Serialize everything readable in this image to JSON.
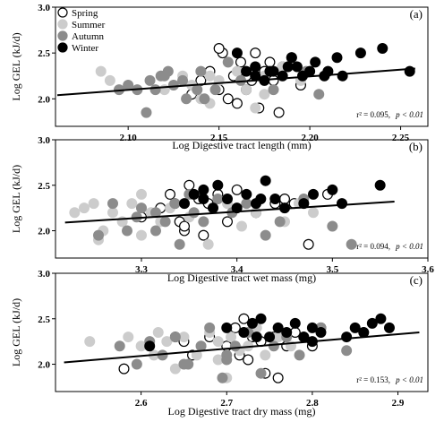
{
  "chart_data": [
    {
      "type": "scatter",
      "panel_label": "(a)",
      "xlabel": "Log Digestive tract length (mm)",
      "ylabel": "Log GEL (kJ/d)",
      "xlim": [
        2.06,
        2.265
      ],
      "ylim": [
        1.7,
        3.0
      ],
      "xticks": [
        "2.10",
        "2.15",
        "2.20",
        "2.25"
      ],
      "yticks": [
        "2.0",
        "2.5",
        "3.0"
      ],
      "stat_r2": "r² = 0.095,",
      "stat_p": "p < 0.01",
      "legend": {
        "placement": "top-left",
        "entries": [
          "Spring",
          "Summer",
          "Autumn",
          "Winter"
        ]
      },
      "trendline": {
        "x": [
          2.061,
          2.258
        ],
        "y": [
          2.04,
          2.33
        ]
      },
      "series": [
        {
          "name": "Spring",
          "x": [
            2.135,
            2.14,
            2.145,
            2.15,
            2.152,
            2.155,
            2.158,
            2.16,
            2.162,
            2.165,
            2.168,
            2.17,
            2.172,
            2.175,
            2.178,
            2.18,
            2.183,
            2.185,
            2.19,
            2.195,
            2.165,
            2.15
          ],
          "y": [
            2.05,
            2.2,
            2.3,
            2.1,
            2.5,
            2.0,
            2.25,
            1.95,
            2.4,
            2.1,
            2.2,
            2.5,
            1.9,
            2.3,
            2.4,
            2.2,
            1.85,
            2.35,
            2.45,
            2.15,
            2.25,
            2.55
          ]
        },
        {
          "name": "Summer",
          "x": [
            2.085,
            2.09,
            2.12,
            2.13,
            2.14,
            2.145,
            2.15,
            2.155,
            2.16,
            2.165,
            2.17,
            2.175,
            2.18,
            2.185,
            2.19,
            2.195,
            2.2,
            2.135,
            2.145,
            2.175
          ],
          "y": [
            2.3,
            2.2,
            2.1,
            2.25,
            2.0,
            1.95,
            2.2,
            2.4,
            2.3,
            2.1,
            1.9,
            2.25,
            2.3,
            2.35,
            2.4,
            2.2,
            2.3,
            2.15,
            2.25,
            2.05
          ]
        },
        {
          "name": "Autumn",
          "x": [
            2.095,
            2.1,
            2.105,
            2.11,
            2.112,
            2.115,
            2.12,
            2.122,
            2.125,
            2.13,
            2.132,
            2.138,
            2.14,
            2.148,
            2.155,
            2.162,
            2.17,
            2.18,
            2.198,
            2.205,
            2.118,
            2.142
          ],
          "y": [
            2.1,
            2.15,
            2.1,
            1.85,
            2.2,
            2.1,
            2.25,
            2.3,
            2.15,
            2.2,
            2.0,
            2.1,
            2.3,
            2.1,
            2.4,
            2.2,
            2.35,
            2.1,
            2.3,
            2.05,
            2.25,
            2.0
          ]
        },
        {
          "name": "Winter",
          "x": [
            2.16,
            2.165,
            2.17,
            2.175,
            2.18,
            2.185,
            2.19,
            2.193,
            2.196,
            2.2,
            2.203,
            2.21,
            2.215,
            2.218,
            2.228,
            2.24,
            2.255,
            2.17,
            2.178,
            2.188,
            2.208
          ],
          "y": [
            2.5,
            2.3,
            2.35,
            2.2,
            2.3,
            2.25,
            2.45,
            2.35,
            2.25,
            2.3,
            2.4,
            2.3,
            2.45,
            2.25,
            2.5,
            2.55,
            2.3,
            2.25,
            2.3,
            2.35,
            2.25
          ]
        }
      ]
    },
    {
      "type": "scatter",
      "panel_label": "(b)",
      "xlabel": "Log Digestive tract wet mass (mg)",
      "ylabel": "Log GEL (kJ/d)",
      "xlim": [
        3.21,
        3.6
      ],
      "ylim": [
        1.7,
        3.0
      ],
      "xticks": [
        "3.3",
        "3.4",
        "3.5",
        "3.6"
      ],
      "yticks": [
        "2.0",
        "2.5",
        "3.0"
      ],
      "stat_r2": "r² = 0.094,",
      "stat_p": "p < 0.01",
      "trendline": {
        "x": [
          3.22,
          3.565
        ],
        "y": [
          2.09,
          2.32
        ]
      },
      "series": [
        {
          "name": "Spring",
          "x": [
            3.3,
            3.32,
            3.335,
            3.34,
            3.345,
            3.35,
            3.36,
            3.365,
            3.37,
            3.38,
            3.39,
            3.4,
            3.42,
            3.44,
            3.45,
            3.46,
            3.475,
            3.495,
            3.33,
            3.345
          ],
          "y": [
            2.15,
            2.25,
            2.3,
            2.1,
            2.0,
            2.5,
            2.35,
            1.95,
            2.3,
            2.4,
            2.1,
            2.45,
            2.2,
            2.3,
            2.35,
            2.3,
            1.85,
            2.4,
            2.4,
            2.05
          ]
        },
        {
          "name": "Summer",
          "x": [
            3.23,
            3.24,
            3.25,
            3.26,
            3.27,
            3.28,
            3.29,
            3.3,
            3.31,
            3.32,
            3.33,
            3.35,
            3.37,
            3.39,
            3.405,
            3.42,
            3.45,
            3.465,
            3.48,
            3.3,
            3.255
          ],
          "y": [
            2.2,
            2.25,
            2.3,
            2.0,
            2.2,
            2.1,
            2.3,
            1.95,
            2.2,
            2.1,
            2.25,
            2.15,
            1.85,
            2.3,
            2.05,
            2.2,
            2.1,
            2.3,
            2.2,
            2.4,
            1.9
          ]
        },
        {
          "name": "Autumn",
          "x": [
            3.255,
            3.27,
            3.285,
            3.3,
            3.315,
            3.325,
            3.335,
            3.34,
            3.35,
            3.355,
            3.365,
            3.38,
            3.395,
            3.41,
            3.43,
            3.445,
            3.47,
            3.5,
            3.52,
            3.315,
            3.295
          ],
          "y": [
            1.95,
            2.3,
            2.0,
            2.25,
            2.2,
            2.1,
            2.3,
            1.85,
            2.4,
            2.2,
            2.1,
            2.35,
            2.2,
            2.3,
            1.95,
            2.1,
            2.35,
            2.05,
            1.85,
            2.0,
            2.15
          ]
        },
        {
          "name": "Winter",
          "x": [
            3.345,
            3.355,
            3.365,
            3.375,
            3.38,
            3.39,
            3.4,
            3.41,
            3.42,
            3.43,
            3.44,
            3.45,
            3.47,
            3.48,
            3.5,
            3.51,
            3.55,
            3.425,
            3.365
          ],
          "y": [
            2.3,
            2.4,
            2.35,
            2.25,
            2.5,
            2.35,
            2.25,
            2.4,
            2.3,
            2.55,
            2.35,
            2.25,
            2.3,
            2.4,
            2.45,
            2.3,
            2.5,
            2.35,
            2.45
          ]
        }
      ]
    },
    {
      "type": "scatter",
      "panel_label": "(c)",
      "xlabel": "Log Digestive tract dry mass (mg)",
      "ylabel": "Log GEL (kJ/d)",
      "xlim": [
        2.5,
        2.935
      ],
      "ylim": [
        1.7,
        3.0
      ],
      "xticks": [
        "2.6",
        "2.7",
        "2.8",
        "2.9"
      ],
      "yticks": [
        "2.0",
        "2.5",
        "3.0"
      ],
      "stat_r2": "r² = 0.153,",
      "stat_p": "p < 0.01",
      "trendline": {
        "x": [
          2.51,
          2.925
        ],
        "y": [
          2.02,
          2.35
        ]
      },
      "series": [
        {
          "name": "Spring",
          "x": [
            2.58,
            2.64,
            2.65,
            2.66,
            2.68,
            2.7,
            2.71,
            2.715,
            2.72,
            2.73,
            2.74,
            2.745,
            2.76,
            2.77,
            2.78,
            2.79,
            2.8,
            2.81,
            2.725,
            2.755
          ],
          "y": [
            1.95,
            2.3,
            2.25,
            2.1,
            2.3,
            2.2,
            2.4,
            2.1,
            2.5,
            2.3,
            2.25,
            1.9,
            1.85,
            2.2,
            2.35,
            2.3,
            2.2,
            2.4,
            2.05,
            2.3
          ]
        },
        {
          "name": "Summer",
          "x": [
            2.54,
            2.585,
            2.6,
            2.615,
            2.63,
            2.64,
            2.65,
            2.665,
            2.67,
            2.68,
            2.69,
            2.7,
            2.705,
            2.715,
            2.725,
            2.735,
            2.745,
            2.76,
            2.775,
            2.62,
            2.69
          ],
          "y": [
            2.25,
            2.3,
            2.2,
            2.1,
            2.25,
            1.95,
            2.3,
            2.1,
            2.2,
            2.35,
            2.05,
            1.85,
            2.3,
            2.15,
            2.2,
            2.4,
            2.1,
            2.3,
            2.2,
            2.35,
            2.25
          ]
        },
        {
          "name": "Autumn",
          "x": [
            2.575,
            2.595,
            2.61,
            2.625,
            2.64,
            2.655,
            2.67,
            2.68,
            2.695,
            2.7,
            2.71,
            2.725,
            2.74,
            2.755,
            2.77,
            2.785,
            2.81,
            2.84,
            2.86,
            2.65,
            2.7
          ],
          "y": [
            2.2,
            2.0,
            2.25,
            2.1,
            2.3,
            2.0,
            2.2,
            2.4,
            1.85,
            2.1,
            2.2,
            2.35,
            1.9,
            2.2,
            2.3,
            2.1,
            2.4,
            2.15,
            2.35,
            2.0,
            2.05
          ]
        },
        {
          "name": "Winter",
          "x": [
            2.61,
            2.7,
            2.72,
            2.73,
            2.74,
            2.75,
            2.76,
            2.77,
            2.78,
            2.79,
            2.8,
            2.81,
            2.84,
            2.85,
            2.86,
            2.87,
            2.88,
            2.89,
            2.735,
            2.8
          ],
          "y": [
            2.2,
            2.4,
            2.35,
            2.45,
            2.5,
            2.3,
            2.4,
            2.35,
            2.45,
            2.3,
            2.4,
            2.35,
            2.3,
            2.4,
            2.35,
            2.45,
            2.5,
            2.4,
            2.3,
            2.25
          ]
        }
      ]
    }
  ],
  "series_styles": {
    "Spring": {
      "fill": "#ffffff",
      "stroke": "#000000"
    },
    "Summer": {
      "fill": "#cccccc",
      "stroke": "#cccccc"
    },
    "Autumn": {
      "fill": "#8c8c8c",
      "stroke": "#8c8c8c"
    },
    "Winter": {
      "fill": "#000000",
      "stroke": "#000000"
    }
  }
}
